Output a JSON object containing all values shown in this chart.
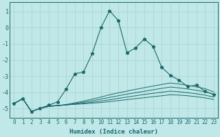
{
  "background_color": "#c0e8e8",
  "grid_color": "#a8d0d0",
  "line_color": "#1a6868",
  "xlabel": "Humidex (Indice chaleur)",
  "xlim": [
    -0.5,
    23.5
  ],
  "ylim": [
    -5.6,
    1.6
  ],
  "yticks": [
    1,
    0,
    -1,
    -2,
    -3,
    -4,
    -5
  ],
  "xticks": [
    0,
    1,
    2,
    3,
    4,
    5,
    6,
    7,
    8,
    9,
    10,
    11,
    12,
    13,
    14,
    15,
    16,
    17,
    18,
    19,
    20,
    21,
    22,
    23
  ],
  "main_x": [
    0,
    1,
    2,
    3,
    4,
    5,
    6,
    7,
    8,
    9,
    10,
    11,
    12,
    13,
    14,
    15,
    16,
    17,
    18,
    19,
    20,
    21,
    22,
    23
  ],
  "main_y": [
    -4.7,
    -4.4,
    -5.2,
    -5.0,
    -4.8,
    -4.6,
    -3.8,
    -2.85,
    -2.75,
    -1.6,
    0.0,
    1.05,
    0.45,
    -1.55,
    -1.25,
    -0.7,
    -1.15,
    -2.45,
    -2.95,
    -3.25,
    -3.65,
    -3.55,
    -3.95,
    -4.15
  ],
  "flat_lines": [
    [
      -4.7,
      -4.4,
      -5.2,
      -5.0,
      -4.85,
      -4.82,
      -4.78,
      -4.75,
      -4.72,
      -4.68,
      -4.64,
      -4.58,
      -4.52,
      -4.46,
      -4.4,
      -4.34,
      -4.28,
      -4.22,
      -4.16,
      -4.18,
      -4.22,
      -4.28,
      -4.35,
      -4.45
    ],
    [
      -4.7,
      -4.4,
      -5.2,
      -5.0,
      -4.87,
      -4.83,
      -4.79,
      -4.74,
      -4.68,
      -4.62,
      -4.55,
      -4.47,
      -4.38,
      -4.3,
      -4.22,
      -4.14,
      -4.07,
      -4.0,
      -3.93,
      -3.97,
      -4.03,
      -4.1,
      -4.18,
      -4.3
    ],
    [
      -4.7,
      -4.4,
      -5.2,
      -5.0,
      -4.88,
      -4.84,
      -4.78,
      -4.7,
      -4.62,
      -4.53,
      -4.43,
      -4.32,
      -4.22,
      -4.12,
      -4.03,
      -3.94,
      -3.85,
      -3.76,
      -3.68,
      -3.73,
      -3.8,
      -3.88,
      -3.97,
      -4.12
    ],
    [
      -4.7,
      -4.4,
      -5.2,
      -5.0,
      -4.88,
      -4.83,
      -4.76,
      -4.66,
      -4.55,
      -4.43,
      -4.3,
      -4.16,
      -4.04,
      -3.93,
      -3.82,
      -3.72,
      -3.62,
      -3.52,
      -3.43,
      -3.49,
      -3.58,
      -3.67,
      -3.78,
      -3.98
    ]
  ],
  "xlabel_fontsize": 6.5,
  "tick_fontsize": 5.5
}
